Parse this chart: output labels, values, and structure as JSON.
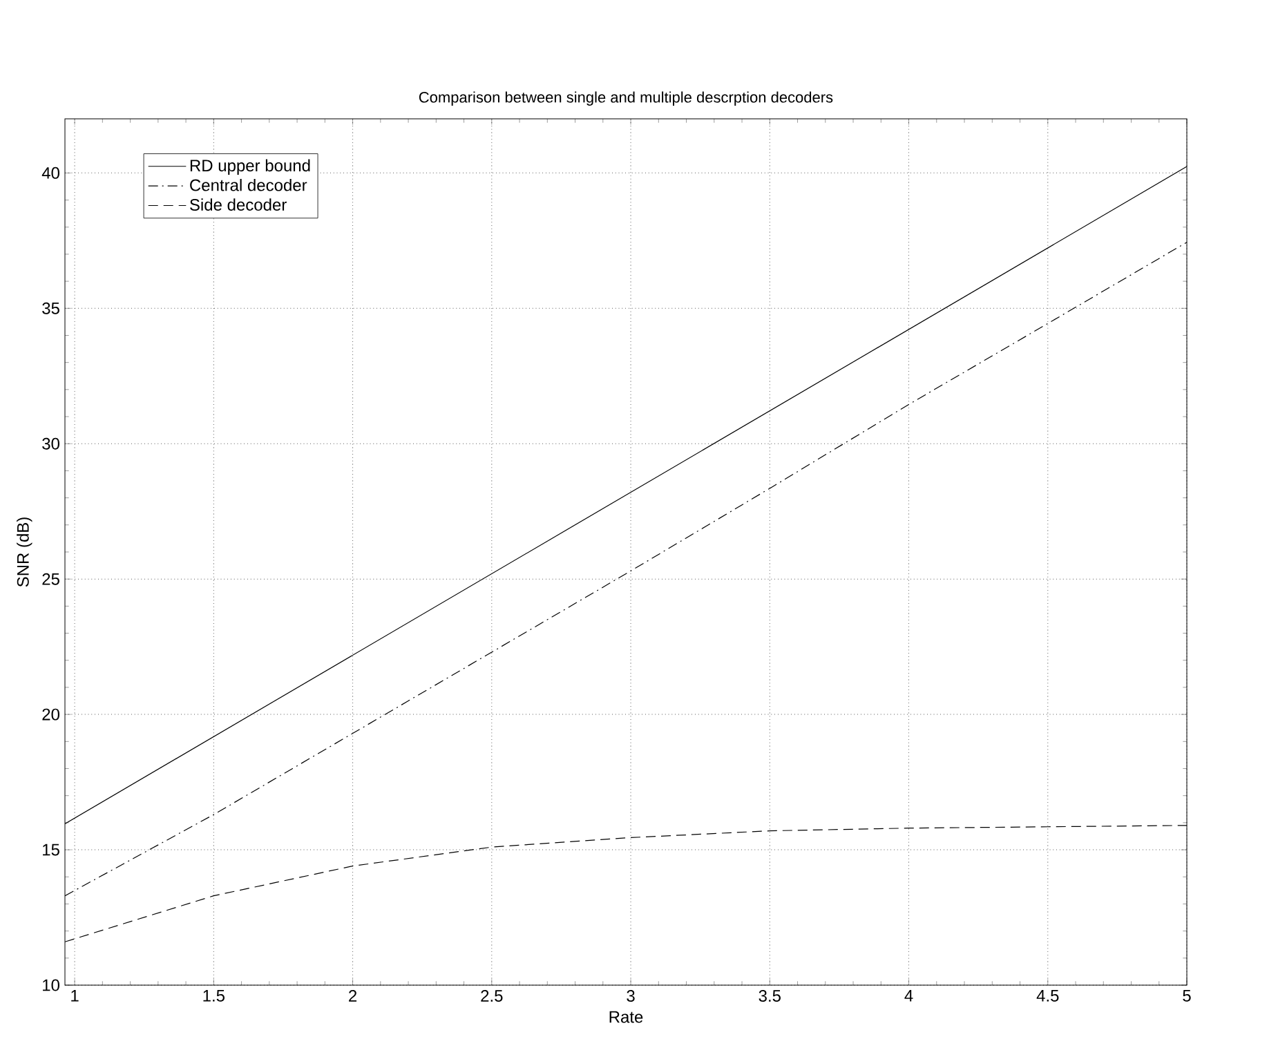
{
  "chart_data": {
    "type": "line",
    "title": "Comparison between single and multiple descrption decoders",
    "xlabel": "Rate",
    "ylabel": "SNR (dB)",
    "xlim": [
      0.965,
      5
    ],
    "ylim": [
      10,
      42
    ],
    "xticks": [
      1,
      1.5,
      2,
      2.5,
      3,
      3.5,
      4,
      4.5,
      5
    ],
    "yticks": [
      10,
      15,
      20,
      25,
      30,
      35,
      40
    ],
    "grid": true,
    "legend": "top left",
    "marker": "none",
    "series": [
      {
        "name": "RD upper bound",
        "color": "#000000",
        "line_style": "solid",
        "x": [
          0.965,
          5
        ],
        "values": [
          15.96,
          40.24
        ]
      },
      {
        "name": "Central decoder",
        "color": "#000000",
        "line_style": "dashdot",
        "x": [
          0.965,
          1.5,
          2,
          2.5,
          3,
          3.5,
          4,
          4.5,
          5
        ],
        "values": [
          13.3,
          16.3,
          19.3,
          22.3,
          25.3,
          28.35,
          31.45,
          34.44,
          37.44
        ]
      },
      {
        "name": "Side decoder",
        "color": "#000000",
        "line_style": "dashed",
        "x": [
          0.965,
          1.5,
          2,
          2.5,
          3,
          3.5,
          4,
          4.5,
          5
        ],
        "values": [
          11.6,
          13.3,
          14.4,
          15.1,
          15.45,
          15.7,
          15.8,
          15.85,
          15.9
        ]
      }
    ]
  }
}
